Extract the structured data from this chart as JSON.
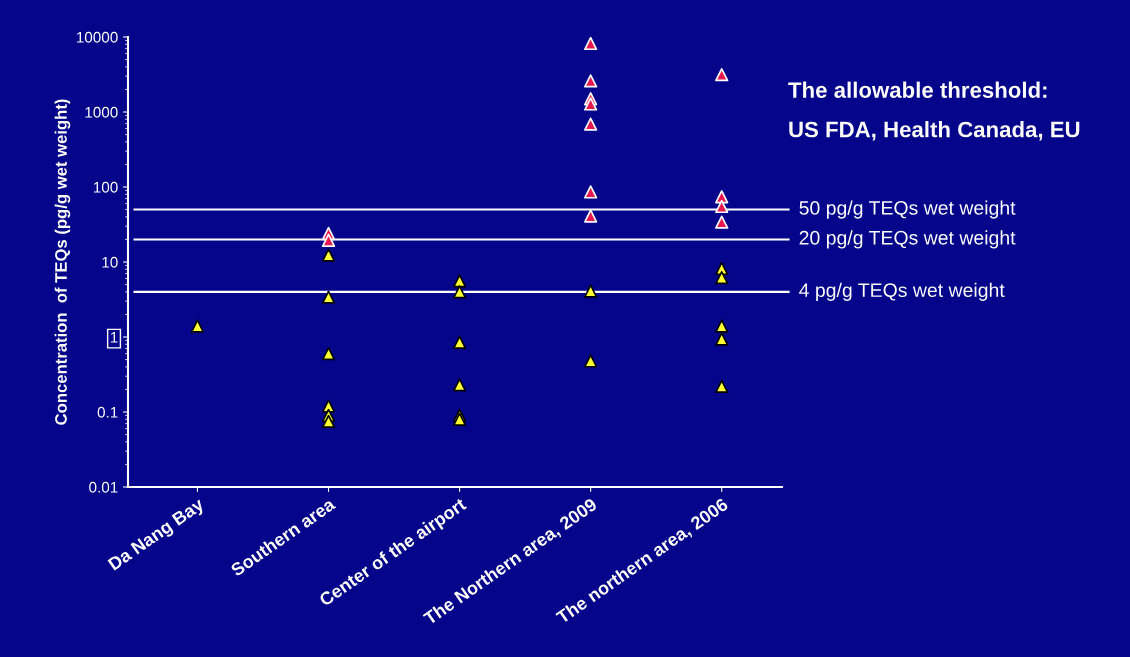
{
  "chart_data": {
    "type": "scatter",
    "ylabel": "Concentration  of TEQs (pg/g wet weight)",
    "categories": [
      "Da Nang Bay",
      "Southern area",
      "Center of the airport",
      "The Northern area, 2009",
      "The northern area, 2006"
    ],
    "log": "y",
    "ylim": [
      0.01,
      10000
    ],
    "yticks": [
      0.01,
      0.1,
      1,
      10,
      100,
      1000,
      10000
    ],
    "grid": false,
    "marker": "triangle",
    "series": [
      {
        "color": "#e8174f",
        "x": [
          "Southern area",
          "Southern area",
          "The Northern area, 2009",
          "The Northern area, 2009",
          "The Northern area, 2009",
          "The Northern area, 2009",
          "The Northern area, 2009",
          "The Northern area, 2009",
          "The Northern area, 2009",
          "The northern area, 2006",
          "The northern area, 2006",
          "The northern area, 2006",
          "The northern area, 2006"
        ],
        "values": [
          24,
          19.5,
          8200,
          2600,
          1500,
          1280,
          690,
          86,
          41,
          3150,
          74,
          55,
          34
        ]
      },
      {
        "color": "#ffff33",
        "x": [
          "Da Nang Bay",
          "Southern area",
          "Southern area",
          "Southern area",
          "Southern area",
          "Southern area",
          "Southern area",
          "Center of the airport",
          "Center of the airport",
          "Center of the airport",
          "Center of the airport",
          "Center of the airport",
          "Center of the airport",
          "The Northern area, 2009",
          "The Northern area, 2009",
          "The northern area, 2006",
          "The northern area, 2006",
          "The northern area, 2006",
          "The northern area, 2006",
          "The northern area, 2006"
        ],
        "values": [
          1.4,
          12.4,
          3.4,
          0.6,
          0.12,
          0.09,
          0.075,
          5.6,
          4.0,
          0.85,
          0.23,
          0.09,
          0.08,
          4.1,
          0.48,
          8.2,
          6.2,
          1.4,
          0.94,
          0.22
        ]
      }
    ],
    "ref_lines": [
      {
        "axis": "y",
        "value": 50,
        "label": "50 pg/g TEQs wet weight",
        "color": "#ffffff"
      },
      {
        "axis": "y",
        "value": 20,
        "label": "20 pg/g TEQs wet weight",
        "color": "#ffffff"
      },
      {
        "axis": "y",
        "value": 4,
        "label": "4 pg/g TEQs wet weight",
        "color": "#ffffff"
      }
    ],
    "annotations": [
      "The allowable threshold:",
      "US FDA, Health Canada, EU"
    ]
  }
}
